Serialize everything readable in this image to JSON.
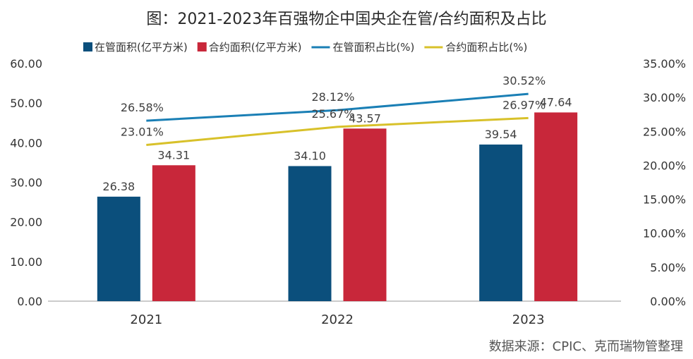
{
  "chart_data": {
    "type": "bar",
    "title": "图：2021-2023年百强物企中国央企在管/合约面积及占比",
    "categories": [
      "2021",
      "2022",
      "2023"
    ],
    "series": [
      {
        "name": "在管面积(亿平方米)",
        "kind": "bar",
        "axis": "left",
        "color": "#0b4f7c",
        "values": [
          26.38,
          34.1,
          39.54
        ],
        "labels": [
          "26.38",
          "34.10",
          "39.54"
        ]
      },
      {
        "name": "合约面积(亿平方米)",
        "kind": "bar",
        "axis": "left",
        "color": "#c8273a",
        "values": [
          34.31,
          43.57,
          47.64
        ],
        "labels": [
          "34.31",
          "43.57",
          "47.64"
        ]
      },
      {
        "name": "在管面积占比(%)",
        "kind": "line",
        "axis": "right",
        "color": "#1a7fb5",
        "values": [
          26.58,
          28.12,
          30.52
        ],
        "labels": [
          "26.58%",
          "28.12%",
          "30.52%"
        ]
      },
      {
        "name": "合约面积占比(%)",
        "kind": "line",
        "axis": "right",
        "color": "#d8c12a",
        "values": [
          23.01,
          25.67,
          26.97
        ],
        "labels": [
          "23.01%",
          "25.67%",
          "26.97%"
        ]
      }
    ],
    "y_left": {
      "min": 0,
      "max": 60,
      "ticks": [
        "0.00",
        "10.00",
        "20.00",
        "30.00",
        "40.00",
        "50.00",
        "60.00"
      ]
    },
    "y_right": {
      "min": 0,
      "max": 35,
      "ticks": [
        "0.00%",
        "5.00%",
        "10.00%",
        "15.00%",
        "20.00%",
        "25.00%",
        "30.00%",
        "35.00%"
      ]
    },
    "legend_position": "top",
    "grid": false,
    "source": "数据来源：CPIC、克而瑞物管整理"
  }
}
